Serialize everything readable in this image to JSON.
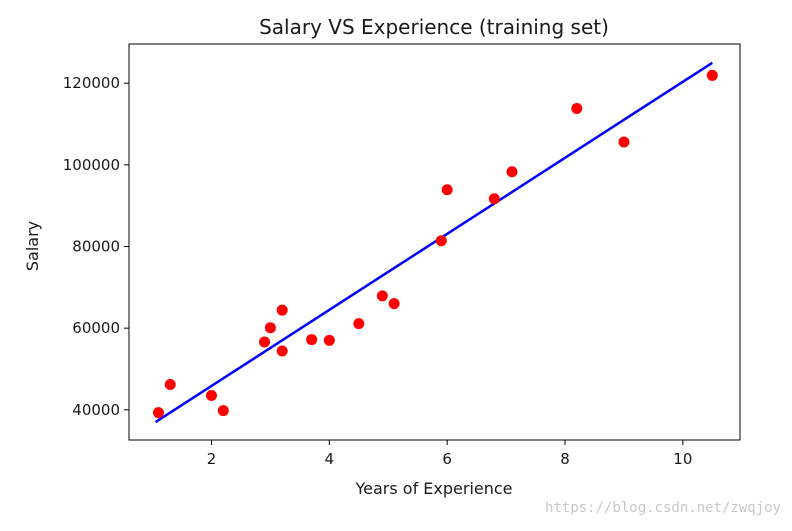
{
  "chart_data": {
    "type": "scatter",
    "title": "Salary VS Experience (training set)",
    "xlabel": "Years of Experience",
    "ylabel": "Salary",
    "xlim": [
      0.6,
      10.97
    ],
    "ylim": [
      32600,
      129600
    ],
    "x_ticks": [
      2,
      4,
      6,
      8,
      10
    ],
    "x_tick_labels": [
      "2",
      "4",
      "6",
      "8",
      "10"
    ],
    "y_ticks": [
      40000,
      60000,
      80000,
      100000,
      120000
    ],
    "y_tick_labels": [
      "40000",
      "60000",
      "80000",
      "100000",
      "120000"
    ],
    "grid": false,
    "series": [
      {
        "kind": "points",
        "color": "#ff0000",
        "points": [
          {
            "x": 1.1,
            "y": 39300
          },
          {
            "x": 1.3,
            "y": 46200
          },
          {
            "x": 2.0,
            "y": 43500
          },
          {
            "x": 2.2,
            "y": 39800
          },
          {
            "x": 2.9,
            "y": 56600
          },
          {
            "x": 3.0,
            "y": 60100
          },
          {
            "x": 3.2,
            "y": 54400
          },
          {
            "x": 3.2,
            "y": 64400
          },
          {
            "x": 3.7,
            "y": 57200
          },
          {
            "x": 4.0,
            "y": 57000
          },
          {
            "x": 4.5,
            "y": 61100
          },
          {
            "x": 4.9,
            "y": 67900
          },
          {
            "x": 5.1,
            "y": 66000
          },
          {
            "x": 5.9,
            "y": 81400
          },
          {
            "x": 6.0,
            "y": 93900
          },
          {
            "x": 6.8,
            "y": 91700
          },
          {
            "x": 7.1,
            "y": 98300
          },
          {
            "x": 8.2,
            "y": 113800
          },
          {
            "x": 9.0,
            "y": 105600
          },
          {
            "x": 10.5,
            "y": 121900
          }
        ]
      },
      {
        "kind": "regression-line",
        "color": "#0000ff",
        "points": [
          {
            "x": 1.05,
            "y": 37000
          },
          {
            "x": 10.5,
            "y": 125000
          }
        ]
      }
    ]
  },
  "watermark": "https://blog.csdn.net/zwqjoy"
}
